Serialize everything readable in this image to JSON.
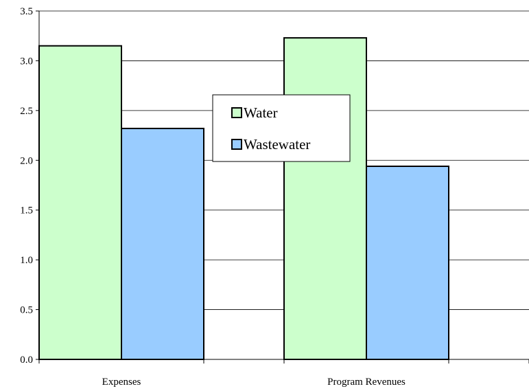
{
  "chart_data": {
    "type": "bar",
    "categories": [
      "Expenses",
      "Program Revenues"
    ],
    "series": [
      {
        "name": "Water",
        "values": [
          3.15,
          3.23
        ],
        "color": "#ccffcc"
      },
      {
        "name": "Wastewater",
        "values": [
          2.32,
          1.94
        ],
        "color": "#99ccff"
      }
    ],
    "title": "",
    "xlabel": "",
    "ylabel": "",
    "ylim": [
      0,
      3.5
    ],
    "yticks": [
      "0.0",
      "0.5",
      "1.0",
      "1.5",
      "2.0",
      "2.5",
      "3.0",
      "3.5"
    ],
    "grid": true,
    "legend_position": "center"
  }
}
